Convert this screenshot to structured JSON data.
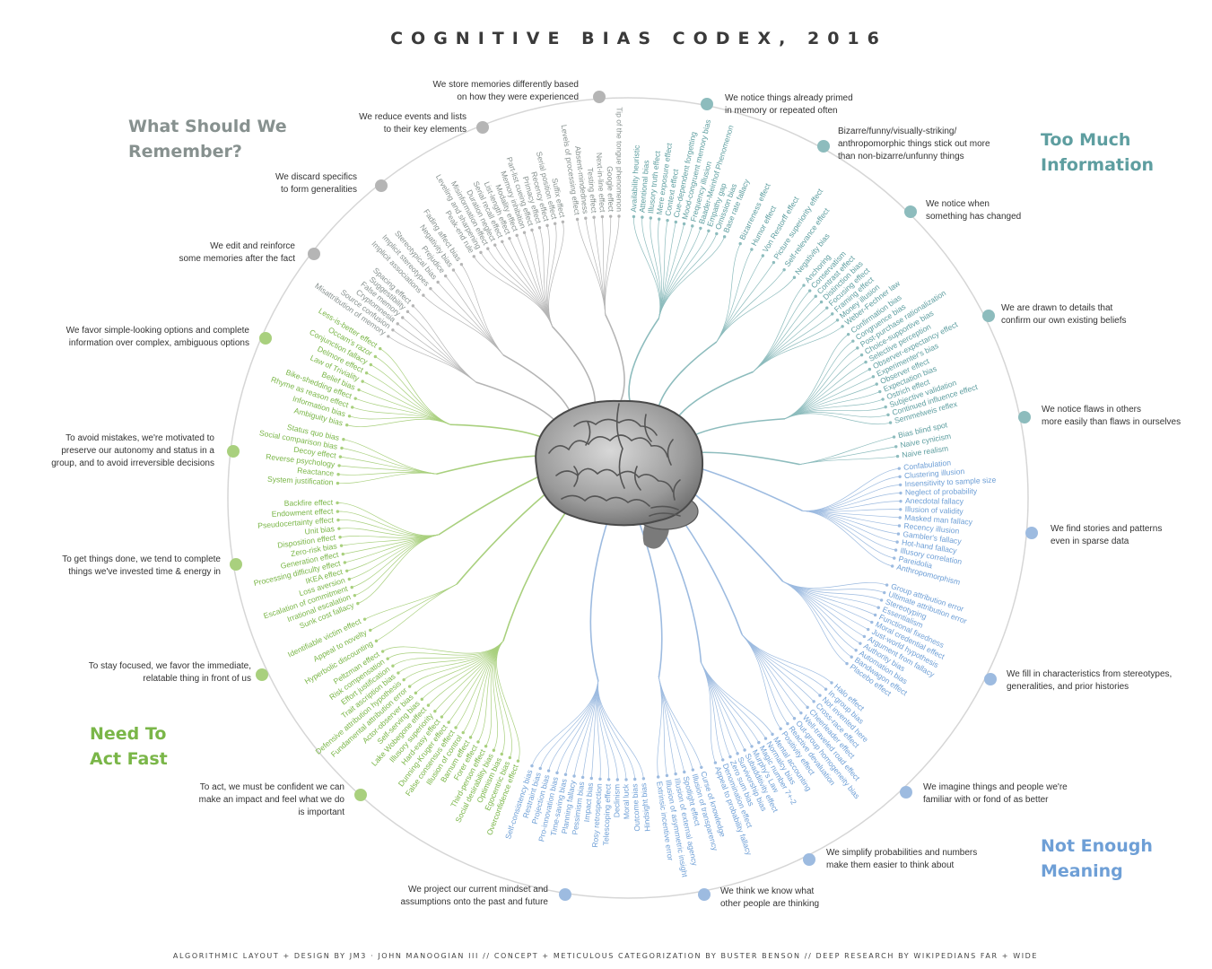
{
  "title": "COGNITIVE BIAS CODEX, 2016",
  "footer": "ALGORITHMIC LAYOUT + DESIGN BY JM3 · JOHN MANOOGIAN III // CONCEPT + METICULOUS CATEGORIZATION BY BUSTER BENSON // DEEP RESEARCH BY WIKIPEDIANS FAR + WIDE",
  "quadrants": [
    {
      "title_lines": [
        "Too Much",
        "Information"
      ],
      "color": "#5e9ea0",
      "line_color": "#8dbcbd",
      "groups": [
        {
          "label_lines": [
            "We notice things already primed",
            "in memory or repeated often"
          ],
          "biases": [
            "Availability heuristic",
            "Attentional bias",
            "Illusory truth effect",
            "Mere exposure effect",
            "Context effect",
            "Cue-dependent forgetting",
            "Mood-congruent memory bias",
            "Frequency illusion",
            "Baader-Meinhof Phenomenon",
            "Empathy gap",
            "Omission bias",
            "Base rate fallacy"
          ]
        },
        {
          "label_lines": [
            "Bizarre/funny/visually-striking/",
            "anthropomorphic things stick out more",
            "than non-bizarre/unfunny things"
          ],
          "biases": [
            "Bizarreness effect",
            "Humor effect",
            "Von Restorff effect",
            "Picture superiority effect",
            "Self-relevance effect",
            "Negativity bias"
          ]
        },
        {
          "label_lines": [
            "We notice when",
            "something has changed"
          ],
          "biases": [
            "Anchoring",
            "Conservatism",
            "Contrast effect",
            "Distinction bias",
            "Focusing effect",
            "Framing effect",
            "Money illusion",
            "Weber-Fechner law"
          ]
        },
        {
          "label_lines": [
            "We are drawn to details that",
            "confirm our own existing beliefs"
          ],
          "biases": [
            "Confirmation bias",
            "Congruence bias",
            "Post-purchase rationalization",
            "Choice-supportive bias",
            "Selective perception",
            "Observer-expectancy effect",
            "Experimenter's bias",
            "Observer effect",
            "Expectation bias",
            "Ostrich effect",
            "Subjective validation",
            "Continued influence effect",
            "Semmelweis reflex"
          ]
        },
        {
          "label_lines": [
            "We notice flaws in others",
            "more easily than flaws in ourselves"
          ],
          "biases": [
            "Bias blind spot",
            "Naive cynicism",
            "Naive realism"
          ]
        }
      ]
    },
    {
      "title_lines": [
        "Not Enough",
        "Meaning"
      ],
      "color": "#6e9fd6",
      "line_color": "#9dbbe0",
      "groups": [
        {
          "label_lines": [
            "We find stories and patterns",
            "even in sparse data"
          ],
          "biases": [
            "Confabulation",
            "Clustering illusion",
            "Insensitivity to sample size",
            "Neglect of probability",
            "Anecdotal fallacy",
            "Illusion of validity",
            "Masked man fallacy",
            "Recency illusion",
            "Gambler's fallacy",
            "Hot-hand fallacy",
            "Illusory correlation",
            "Pareidolia",
            "Anthropomorphism"
          ]
        },
        {
          "label_lines": [
            "We fill in characteristics from stereotypes,",
            "generalities, and prior histories"
          ],
          "biases": [
            "Group attribution error",
            "Ultimate attribution error",
            "Stereotyping",
            "Essentialism",
            "Functional fixedness",
            "Moral credential effect",
            "Just-world hypothesis",
            "Argument from fallacy",
            "Authority bias",
            "Automation bias",
            "Bandwagon effect",
            "Placebo effect"
          ]
        },
        {
          "label_lines": [
            "We imagine things and people we're",
            "familiar with or fond of as better"
          ],
          "biases": [
            "Halo effect",
            "In-group bias",
            "Not invented here",
            "Cross-race effect",
            "Cheerleader effect",
            "Well-traveled road effect",
            "Out-group homogeneity bias",
            "Reactive devaluation",
            "Positivity effect"
          ]
        },
        {
          "label_lines": [
            "We simplify probabilities and numbers",
            "make them easier to think about"
          ],
          "biases": [
            "Mental accounting",
            "Normalcy bias",
            "Magic number 7+-2",
            "Murphy's Law",
            "Subadditivity effect",
            "Survivorship bias",
            "Zero sum bias",
            "Denomination effect",
            "Appeal to probability fallacy"
          ]
        },
        {
          "label_lines": [
            "We think we know what",
            "other people are thinking"
          ],
          "biases": [
            "Curse of knowledge",
            "Illusion of transparency",
            "Spotlight effect",
            "Illusion of external agency",
            "Illusion of asymmetric insight",
            "Extrinsic incentive error"
          ]
        },
        {
          "label_lines": [
            "We project our current mindset and",
            "assumptions onto the past and future"
          ],
          "biases": [
            "Hindsight bias",
            "Outcome bias",
            "Moral luck",
            "Declinism",
            "Telescoping effect",
            "Rosy retrospection",
            "Impact bias",
            "Pessimism bias",
            "Planning fallacy",
            "Time-saving bias",
            "Pro-innovation bias",
            "Projection bias",
            "Restraint bias",
            "Self-consistency bias"
          ]
        }
      ]
    },
    {
      "title_lines": [
        "Need To",
        "Act Fast"
      ],
      "color": "#7ab648",
      "line_color": "#a9d07e",
      "groups": [
        {
          "label_lines": [
            "To act, we must be confident we can",
            "make an impact and feel what we do",
            "is important"
          ],
          "biases": [
            "Overconfidence effect",
            "Egocentric bias",
            "Optimism bias",
            "Social desirability bias",
            "Third-person effect",
            "Forer effect",
            "Barnum effect",
            "Illusion of control",
            "False consensus effect",
            "Dunning-Kruger effect",
            "Hard-easy effect",
            "Illusory superiority",
            "Lake Wobegone effect",
            "Self-serving bias",
            "Actor-observer bias",
            "Fundamental attribution error",
            "Defensive attribution hypothesis",
            "Trait ascription bias",
            "Effort justification",
            "Risk compensation",
            "Peltzman effect"
          ]
        },
        {
          "label_lines": [
            "To stay focused, we favor the immediate,",
            "relatable thing in front of us"
          ],
          "biases": [
            "Hyperbolic discounting",
            "Appeal to novelty",
            "Identifiable victim effect"
          ]
        },
        {
          "label_lines": [
            "To get things done, we tend to complete",
            "things we've invested time & energy in"
          ],
          "biases": [
            "Sunk cost fallacy",
            "Irrational escalation",
            "Escalation of commitment",
            "Loss aversion",
            "IKEA effect",
            "Processing difficulty effect",
            "Generation effect",
            "Zero-risk bias",
            "Disposition effect",
            "Unit bias",
            "Pseudocertainty effect",
            "Endowment effect",
            "Backfire effect"
          ]
        },
        {
          "label_lines": [
            "To avoid mistakes, we're motivated to",
            "preserve our autonomy and status in a",
            "group, and to avoid irreversible decisions"
          ],
          "biases": [
            "System justification",
            "Reactance",
            "Reverse psychology",
            "Decoy effect",
            "Social comparison bias",
            "Status quo bias"
          ]
        },
        {
          "label_lines": [
            "We favor simple-looking options and complete",
            "information over complex, ambiguous options"
          ],
          "biases": [
            "Ambiguity bias",
            "Information bias",
            "Rhyme as reason effect",
            "Bike-shedding effect",
            "Belief bias",
            "Law of Triviality",
            "Delmore effect",
            "Conjunction fallacy",
            "Occam's razor",
            "Less-is-better effect"
          ]
        }
      ]
    },
    {
      "title_lines": [
        "What Should We",
        "Remember?"
      ],
      "color": "#87918f",
      "line_color": "#b5b5b5",
      "groups": [
        {
          "label_lines": [
            "We edit and reinforce",
            "some memories after the fact"
          ],
          "biases": [
            "Misattribution of memory",
            "Source confusion",
            "Cryptomnesia",
            "False memory",
            "Suggestibility",
            "Spacing effect"
          ]
        },
        {
          "label_lines": [
            "We discard specifics",
            "to form generalities"
          ],
          "biases": [
            "Implicit associations",
            "Implicit stereotypes",
            "Stereotypical bias",
            "Prejudice",
            "Negativity bias",
            "Fading affect bias"
          ]
        },
        {
          "label_lines": [
            "We reduce events and lists",
            "to their key elements"
          ],
          "biases": [
            "Peak-end rule",
            "Leveling and sharpening",
            "Misinformation effect",
            "Duration neglect",
            "Serial recall effect",
            "List-length effect",
            "Modality effect",
            "Memory inhibition",
            "Part-list cueing effect",
            "Primacy effect",
            "Recency effect",
            "Serial position effect",
            "Suffix effect"
          ]
        },
        {
          "label_lines": [
            "We store memories differently based",
            "on how they were experienced"
          ],
          "biases": [
            "Levels of processing effect",
            "Absent-mindedness",
            "Testing effect",
            "Next-in-line effect",
            "Google effect",
            "Tip of the tongue phenomenon"
          ]
        }
      ]
    }
  ],
  "brain_icon": "brain-icon"
}
